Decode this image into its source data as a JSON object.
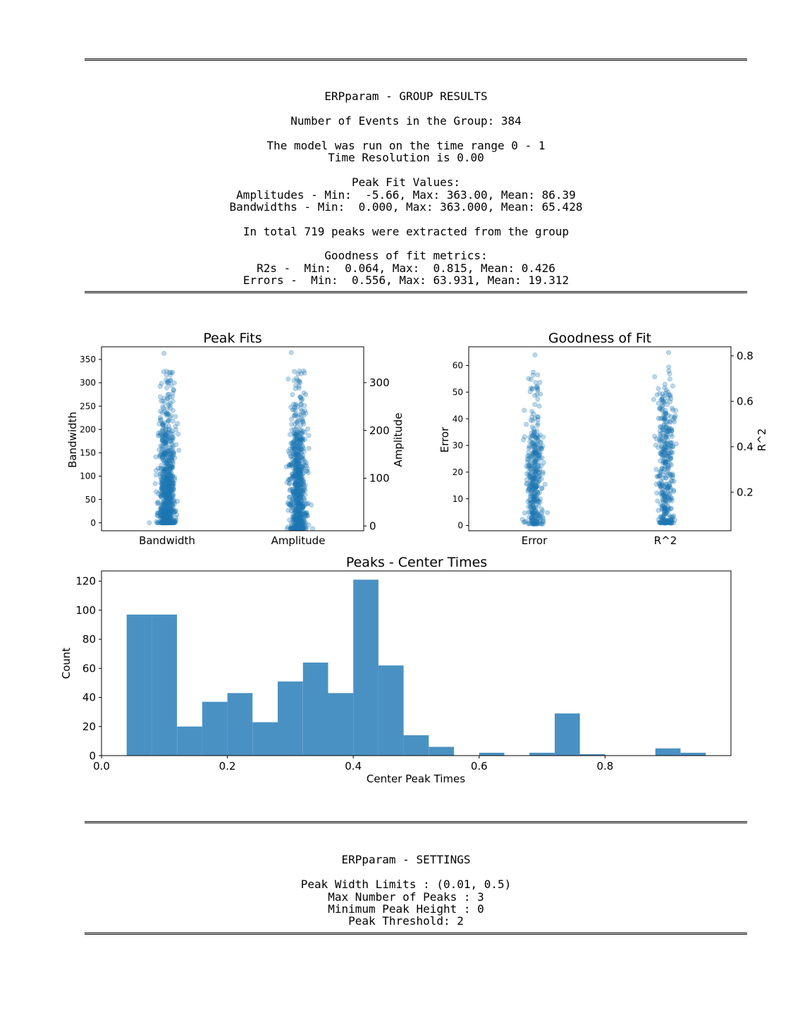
{
  "report": {
    "title": "ERPparam - GROUP RESULTS",
    "n_events": "Number of Events in the Group: 384",
    "time_range": "The model was run on the time range 0 - 1",
    "time_res": "Time Resolution is 0.00",
    "peak_fit_header": "Peak Fit Values:",
    "amplitudes": "Amplitudes - Min:  -5.66, Max: 363.00, Mean: 86.39",
    "bandwidths": "Bandwidths - Min:  0.000, Max: 363.000, Mean: 65.428",
    "total_peaks": "In total 719 peaks were extracted from the group",
    "gof_header": "Goodness of fit metrics:",
    "r2s": "R2s -  Min:  0.064, Max:  0.815, Mean: 0.426",
    "errors": "Errors -  Min:  0.556, Max: 63.931, Mean: 19.312"
  },
  "settings": {
    "title": "ERPparam - SETTINGS",
    "width_limits": "Peak Width Limits : (0.01, 0.5)",
    "max_peaks": "Max Number of Peaks : 3",
    "min_height": "Minimum Peak Height : 0",
    "threshold": "Peak Threshold: 2"
  },
  "colors": {
    "series": "#1f77b4",
    "hist": "#4a91c3"
  },
  "chart_data": [
    {
      "type": "scatter",
      "title": "Peak Fits",
      "categories": [
        "Bandwidth",
        "Amplitude"
      ],
      "ylabel_left": "Bandwidth",
      "ylabel_right": "Amplitude",
      "ylim_left": [
        -17,
        377
      ],
      "ylim_right": [
        -10,
        375
      ],
      "yticks_left": [
        0,
        50,
        100,
        150,
        200,
        250,
        300,
        350
      ],
      "yticks_right": [
        0,
        100,
        200,
        300
      ],
      "series": [
        {
          "name": "Bandwidth",
          "axis": "left",
          "min": 0,
          "max": 363,
          "mean": 65.4,
          "n": 719
        },
        {
          "name": "Amplitude",
          "axis": "right",
          "min": -5.66,
          "max": 363,
          "mean": 86.4,
          "n": 719
        }
      ]
    },
    {
      "type": "scatter",
      "title": "Goodness of Fit",
      "categories": [
        "Error",
        "R^2"
      ],
      "ylabel_left": "Error",
      "ylabel_right": "R^2",
      "ylim_left": [
        -2,
        67
      ],
      "ylim_right": [
        0.03,
        0.84
      ],
      "yticks_left": [
        0,
        10,
        20,
        30,
        40,
        50,
        60
      ],
      "yticks_right": [
        0.2,
        0.4,
        0.6,
        0.8
      ],
      "series": [
        {
          "name": "Error",
          "axis": "left",
          "min": 0.556,
          "max": 63.931,
          "mean": 19.3,
          "n": 384
        },
        {
          "name": "R^2",
          "axis": "right",
          "min": 0.064,
          "max": 0.815,
          "mean": 0.426,
          "n": 384
        }
      ]
    },
    {
      "type": "bar",
      "title": "Peaks - Center Times",
      "xlabel": "Center Peak Times",
      "ylabel": "Count",
      "xlim": [
        0.0,
        1.0
      ],
      "ylim": [
        0,
        127
      ],
      "xticks": [
        0.0,
        0.2,
        0.4,
        0.6,
        0.8
      ],
      "yticks": [
        0,
        20,
        40,
        60,
        80,
        100,
        120
      ],
      "bin_edges": [
        0.04,
        0.08,
        0.12,
        0.16,
        0.2,
        0.24,
        0.28,
        0.32,
        0.36,
        0.4,
        0.44,
        0.48,
        0.52,
        0.56,
        0.6,
        0.64,
        0.68,
        0.72,
        0.76,
        0.8,
        0.84,
        0.88,
        0.92,
        0.96
      ],
      "values": [
        97,
        97,
        20,
        37,
        43,
        23,
        51,
        64,
        43,
        121,
        62,
        14,
        6,
        0,
        2,
        0,
        2,
        29,
        1,
        0,
        0,
        5,
        2
      ]
    }
  ]
}
